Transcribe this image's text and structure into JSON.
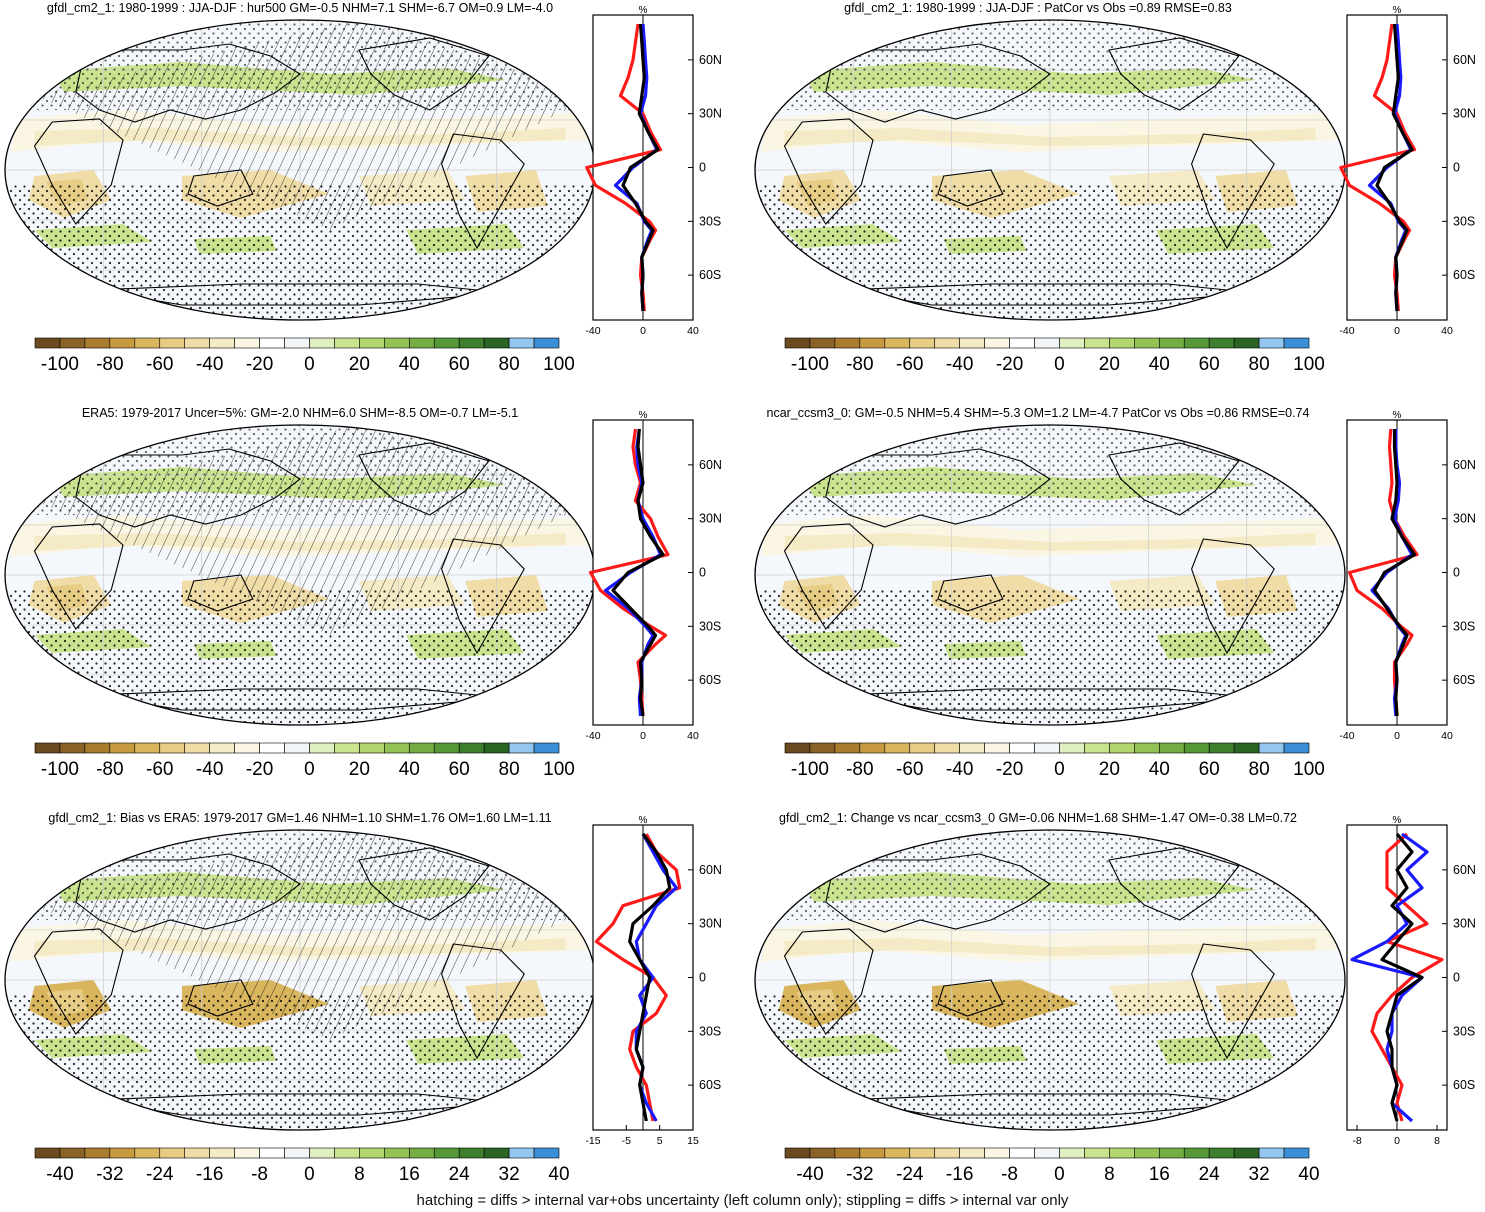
{
  "footer": "hatching = diffs > internal var+obs uncertainty (left column only); stippling = diffs > internal var only",
  "colors": {
    "palette": [
      "#6b4a1f",
      "#8a6228",
      "#a97c2e",
      "#c79a3f",
      "#d9b65e",
      "#e6cc84",
      "#efdca6",
      "#f5eac6",
      "#fbf6e4",
      "#ffffff",
      "#f3f6f8",
      "#e0efc0",
      "#c9e38f",
      "#b1d56f",
      "#93c255",
      "#74ad44",
      "#569838",
      "#3d7f2d",
      "#2a6524",
      "#93c7ef",
      "#3b8fd6"
    ],
    "red": "#ff1a1a",
    "blue": "#1a1aff",
    "black": "#000000",
    "ocean": "#f4f7fb"
  },
  "chart_data": [
    {
      "type": "map",
      "title": "gfdl_cm2_1: 1980-1999 : JJA-DJF : hur500 GM=-0.5 NHM=7.1 SHM=-6.7 OM=0.9 LM=-4.0",
      "colorbar_ticks": [
        "-100",
        "-80",
        "-60",
        "-40",
        "-20",
        "0",
        "20",
        "40",
        "60",
        "80",
        "100"
      ],
      "hatching": true,
      "profile": {
        "unit": "%",
        "xlim": [
          -40,
          40
        ],
        "xticks": [
          "-40",
          "0",
          "40"
        ],
        "yticks": [
          "60N",
          "30N",
          "0",
          "30S",
          "60S"
        ],
        "lat": [
          -80,
          -70,
          -60,
          -50,
          -40,
          -35,
          -30,
          -20,
          -10,
          0,
          10,
          20,
          30,
          40,
          50,
          60,
          70,
          80
        ],
        "series": [
          {
            "color": "#000000",
            "values": [
              0,
              -1,
              0,
              -1,
              5,
              8,
              2,
              -6,
              -16,
              -10,
              12,
              4,
              -3,
              -1,
              1,
              0,
              -1,
              -2
            ]
          },
          {
            "color": "#1a1aff",
            "values": [
              0,
              -1,
              0,
              -1,
              4,
              7,
              1,
              -5,
              -22,
              -8,
              11,
              4,
              -2,
              2,
              3,
              2,
              1,
              0
            ]
          },
          {
            "color": "#ff1a1a",
            "values": [
              1,
              0,
              -2,
              -1,
              6,
              10,
              5,
              -14,
              -38,
              -45,
              14,
              6,
              0,
              -18,
              -12,
              -8,
              -6,
              -4
            ]
          }
        ]
      }
    },
    {
      "type": "map",
      "title": "gfdl_cm2_1: 1980-1999 : JJA-DJF : PatCor vs Obs =0.89 RMSE=0.83",
      "colorbar_ticks": [
        "-100",
        "-80",
        "-60",
        "-40",
        "-20",
        "0",
        "20",
        "40",
        "60",
        "80",
        "100"
      ],
      "hatching": false,
      "profile": {
        "unit": "%",
        "xlim": [
          -40,
          40
        ],
        "xticks": [
          "-40",
          "0",
          "40"
        ],
        "yticks": [
          "60N",
          "30N",
          "0",
          "30S",
          "60S"
        ],
        "lat": [
          -80,
          -70,
          -60,
          -50,
          -40,
          -35,
          -30,
          -20,
          -10,
          0,
          10,
          20,
          30,
          40,
          50,
          60,
          70,
          80
        ],
        "series": [
          {
            "color": "#000000",
            "values": [
              0,
              -1,
              0,
              -1,
              5,
              8,
              2,
              -6,
              -16,
              -10,
              12,
              4,
              -3,
              -1,
              1,
              0,
              -1,
              -2
            ]
          },
          {
            "color": "#1a1aff",
            "values": [
              0,
              -1,
              0,
              -1,
              4,
              7,
              1,
              -5,
              -22,
              -8,
              11,
              4,
              -2,
              2,
              3,
              2,
              1,
              0
            ]
          },
          {
            "color": "#ff1a1a",
            "values": [
              1,
              0,
              -2,
              -1,
              6,
              10,
              5,
              -14,
              -38,
              -45,
              14,
              6,
              0,
              -18,
              -12,
              -8,
              -6,
              -4
            ]
          }
        ]
      }
    },
    {
      "type": "map",
      "title": "ERA5: 1979-2017 Uncer=5%: GM=-2.0 NHM=6.0 SHM=-8.5 OM=-0.7 LM=-5.1",
      "colorbar_ticks": [
        "-100",
        "-80",
        "-60",
        "-40",
        "-20",
        "0",
        "20",
        "40",
        "60",
        "80",
        "100"
      ],
      "hatching": true,
      "profile": {
        "unit": "%",
        "xlim": [
          -40,
          40
        ],
        "xticks": [
          "-40",
          "0",
          "40"
        ],
        "yticks": [
          "60N",
          "30N",
          "0",
          "30S",
          "60S"
        ],
        "lat": [
          -80,
          -70,
          -60,
          -50,
          -40,
          -35,
          -30,
          -20,
          -10,
          0,
          10,
          20,
          30,
          40,
          50,
          60,
          70,
          80
        ],
        "series": [
          {
            "color": "#000000",
            "values": [
              0,
              -2,
              -1,
              -2,
              6,
              10,
              4,
              -10,
              -24,
              -12,
              16,
              6,
              -2,
              -4,
              0,
              -2,
              -4,
              -3
            ]
          },
          {
            "color": "#1a1aff",
            "values": [
              -2,
              -3,
              -1,
              -1,
              4,
              8,
              2,
              -12,
              -30,
              -10,
              14,
              8,
              0,
              -4,
              -1,
              -4,
              -5,
              -3
            ]
          },
          {
            "color": "#ff1a1a",
            "values": [
              0,
              -1,
              -2,
              -4,
              10,
              18,
              6,
              -16,
              -34,
              -42,
              20,
              12,
              6,
              -6,
              -2,
              -6,
              -8,
              -6
            ]
          }
        ]
      }
    },
    {
      "type": "map",
      "title": "ncar_ccsm3_0: GM=-0.5 NHM=5.4 SHM=-5.3 OM=1.2 LM=-4.7 PatCor vs Obs =0.86 RMSE=0.74",
      "colorbar_ticks": [
        "-100",
        "-80",
        "-60",
        "-40",
        "-20",
        "0",
        "20",
        "40",
        "60",
        "80",
        "100"
      ],
      "hatching": false,
      "profile": {
        "unit": "%",
        "xlim": [
          -40,
          40
        ],
        "xticks": [
          "-40",
          "0",
          "40"
        ],
        "yticks": [
          "60N",
          "30N",
          "0",
          "30S",
          "60S"
        ],
        "lat": [
          -80,
          -70,
          -60,
          -50,
          -40,
          -35,
          -30,
          -20,
          -10,
          0,
          10,
          20,
          30,
          40,
          50,
          60,
          70,
          80
        ],
        "series": [
          {
            "color": "#000000",
            "values": [
              0,
              -1,
              0,
              -1,
              5,
              8,
              2,
              -8,
              -18,
              -10,
              14,
              4,
              -4,
              -1,
              0,
              -1,
              -2,
              -2
            ]
          },
          {
            "color": "#1a1aff",
            "values": [
              -1,
              -2,
              0,
              -1,
              4,
              7,
              1,
              -7,
              -20,
              -8,
              12,
              4,
              -2,
              1,
              2,
              0,
              -1,
              -1
            ]
          },
          {
            "color": "#ff1a1a",
            "values": [
              0,
              -1,
              -2,
              -2,
              8,
              12,
              3,
              -12,
              -32,
              -38,
              16,
              6,
              -2,
              -6,
              -4,
              -5,
              -6,
              -5
            ]
          }
        ]
      }
    },
    {
      "type": "map",
      "title": "gfdl_cm2_1: Bias vs ERA5: 1979-2017 GM=1.46 NHM=1.10 SHM=1.76 OM=1.60 LM=1.11",
      "colorbar_ticks": [
        "-40",
        "-32",
        "-24",
        "-16",
        "-8",
        "0",
        "8",
        "16",
        "24",
        "32",
        "40"
      ],
      "hatching": true,
      "profile": {
        "unit": "%",
        "xlim": [
          -15,
          15
        ],
        "xticks": [
          "-15",
          "-5",
          "5",
          "15"
        ],
        "yticks": [
          "60S",
          "30S",
          "0",
          "30N",
          "60N"
        ],
        "lat": [
          -80,
          -70,
          -60,
          -50,
          -40,
          -30,
          -20,
          -10,
          0,
          10,
          20,
          30,
          40,
          50,
          60,
          70,
          80
        ],
        "series": [
          {
            "color": "#000000",
            "values": [
              1,
              0,
              -1,
              0,
              -2,
              -1,
              0,
              1,
              2,
              -1,
              -4,
              -3,
              3,
              8,
              7,
              4,
              0
            ]
          },
          {
            "color": "#1a1aff",
            "values": [
              4,
              1,
              -1,
              0,
              -2,
              -2,
              1,
              -1,
              3,
              -1,
              -2,
              1,
              4,
              10,
              6,
              3,
              0
            ]
          },
          {
            "color": "#ff1a1a",
            "values": [
              3,
              2,
              1,
              -2,
              -4,
              -3,
              4,
              7,
              3,
              -6,
              -14,
              -9,
              -6,
              11,
              10,
              4,
              1
            ]
          }
        ]
      }
    },
    {
      "type": "map",
      "title": "gfdl_cm2_1: Change vs ncar_ccsm3_0 GM=-0.06 NHM=1.68 SHM=-1.47 OM=-0.38 LM=0.72",
      "colorbar_ticks": [
        "-40",
        "-32",
        "-24",
        "-16",
        "-8",
        "0",
        "8",
        "16",
        "24",
        "32",
        "40"
      ],
      "hatching": false,
      "profile": {
        "unit": "%",
        "xlim": [
          -10,
          10
        ],
        "xticks": [
          "-8",
          "0",
          "8"
        ],
        "yticks": [
          "60S",
          "30S",
          "0",
          "30N",
          "60N"
        ],
        "lat": [
          -80,
          -70,
          -60,
          -50,
          -40,
          -30,
          -20,
          -10,
          0,
          10,
          20,
          30,
          40,
          50,
          60,
          70,
          80
        ],
        "series": [
          {
            "color": "#000000",
            "values": [
              0,
              -1,
              0,
              -1,
              -1,
              -2,
              -1,
              0,
              5,
              -3,
              0,
              3,
              -1,
              2,
              0,
              3,
              0
            ]
          },
          {
            "color": "#1a1aff",
            "values": [
              3,
              -1,
              0,
              -1,
              -2,
              -1,
              -1,
              1,
              5,
              -9,
              -2,
              2,
              0,
              5,
              2,
              6,
              1
            ]
          },
          {
            "color": "#ff1a1a",
            "values": [
              1,
              0,
              1,
              -1,
              -3,
              -5,
              -4,
              -1,
              3,
              9,
              -2,
              6,
              2,
              -2,
              -2,
              -2,
              2
            ]
          }
        ]
      }
    }
  ]
}
